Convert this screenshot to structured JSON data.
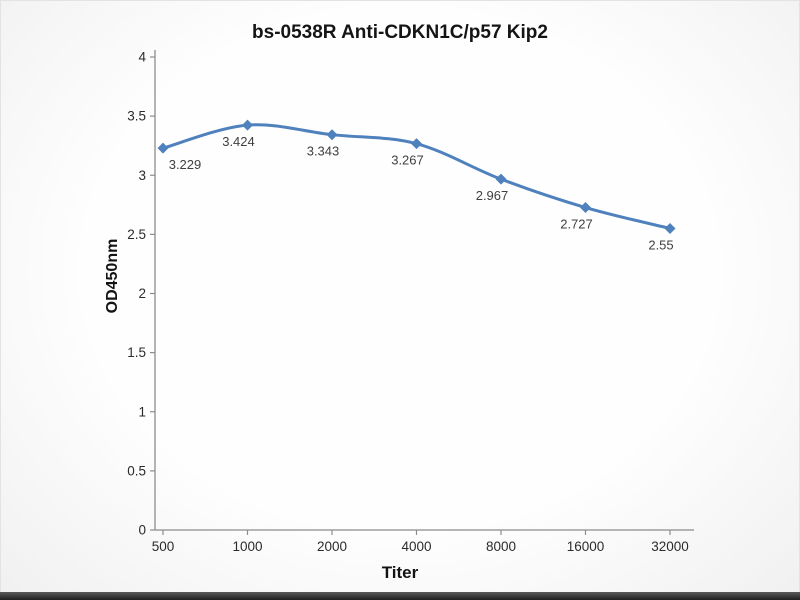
{
  "chart_data": {
    "type": "line",
    "title": "bs-0538R Anti-CDKN1C/p57 Kip2",
    "xlabel": "Titer",
    "ylabel": "OD450nm",
    "categories": [
      "500",
      "1000",
      "2000",
      "4000",
      "8000",
      "16000",
      "32000"
    ],
    "series": [
      {
        "name": "OD450nm",
        "values": [
          3.229,
          3.424,
          3.343,
          3.267,
          2.967,
          2.727,
          2.55
        ],
        "point_labels": [
          "3.229",
          "3.424",
          "3.343",
          "3.267",
          "2.967",
          "2.727",
          "2.55"
        ]
      }
    ],
    "ylim": [
      0,
      4
    ],
    "ytick_step": 0.5,
    "yticks": [
      "0",
      "0.5",
      "1",
      "1.5",
      "2",
      "2.5",
      "3",
      "3.5",
      "4"
    ],
    "grid": false,
    "legend": "none",
    "line_color": "#4f81bd",
    "marker": "diamond",
    "axis_color": "#8c8c8c",
    "tick_label_color": "#2b2b2b",
    "data_label_color": "#3f3f3f"
  }
}
